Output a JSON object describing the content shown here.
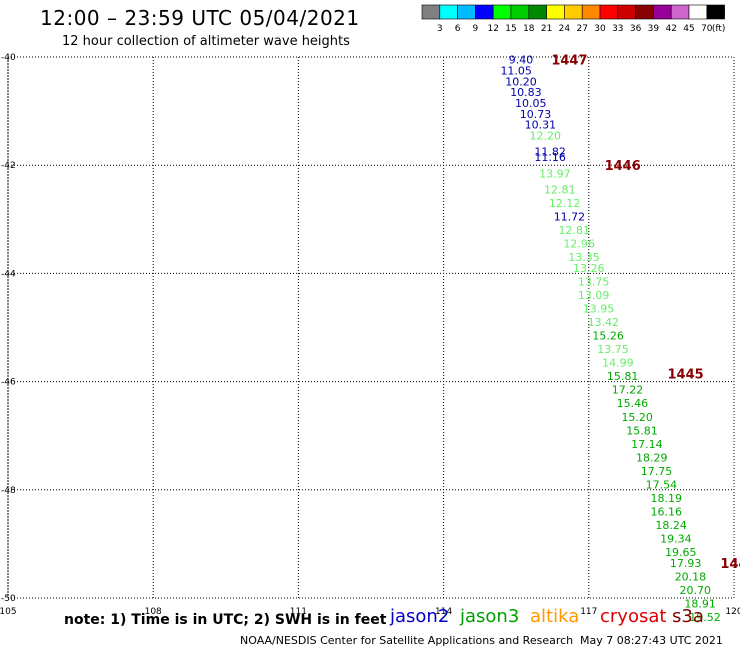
{
  "title": "12:00 – 23:59 UTC 05/04/2021",
  "subtitle": "12 hour collection of altimeter wave heights",
  "footer": {
    "note": "note:  1) Time is in UTC;  2) SWH is in feet",
    "credit": "NOAA/NESDIS Center for Satellite Applications and Research",
    "timestamp": "May  7 08:27:43 UTC 2021"
  },
  "satellites": [
    {
      "name": "jason2",
      "color": "#0000cc"
    },
    {
      "name": "jason3",
      "color": "#00a000"
    },
    {
      "name": "altika",
      "color": "#ff9900"
    },
    {
      "name": "cryosat",
      "color": "#dd0000"
    },
    {
      "name": "s3a",
      "color": "#880000"
    }
  ],
  "colorbar": {
    "colors": [
      "#808080",
      "#00ffff",
      "#00bbff",
      "#0000ff",
      "#00ff00",
      "#00cc00",
      "#008800",
      "#ffff00",
      "#ffcc00",
      "#ff8800",
      "#ff0000",
      "#cc0000",
      "#880000",
      "#990099",
      "#cc66cc",
      "#ffffff",
      "#000000"
    ],
    "labels": [
      "3",
      "6",
      "9",
      "12",
      "15",
      "18",
      "21",
      "24",
      "27",
      "30",
      "33",
      "36",
      "39",
      "42",
      "45",
      "70",
      "(ft)"
    ]
  },
  "chart_data": {
    "type": "scatter",
    "xlim": [
      105,
      120
    ],
    "ylim": [
      -50,
      -40
    ],
    "xticks": [
      "105",
      "108",
      "111",
      "114",
      "117",
      "120"
    ],
    "yticks": [
      "-40",
      "-42",
      "-44",
      "-46",
      "-48",
      "-50"
    ],
    "grid": true,
    "points": [
      {
        "lon": 115.6,
        "lat": -40.05,
        "v": "9.40",
        "c": "#0000aa"
      },
      {
        "lon": 115.5,
        "lat": -40.25,
        "v": "11.05",
        "c": "#0000aa"
      },
      {
        "lon": 115.6,
        "lat": -40.45,
        "v": "10.20",
        "c": "#0000aa"
      },
      {
        "lon": 115.7,
        "lat": -40.65,
        "v": "10.83",
        "c": "#0000aa"
      },
      {
        "lon": 115.8,
        "lat": -40.85,
        "v": "10.05",
        "c": "#0000aa"
      },
      {
        "lon": 115.9,
        "lat": -41.05,
        "v": "10.73",
        "c": "#0000aa"
      },
      {
        "lon": 116.0,
        "lat": -41.25,
        "v": "10.31",
        "c": "#0000aa"
      },
      {
        "lon": 116.1,
        "lat": -41.45,
        "v": "12.20",
        "c": "#66ee66"
      },
      {
        "lon": 116.2,
        "lat": -41.75,
        "v": "11.82",
        "c": "#0000aa"
      },
      {
        "lon": 116.2,
        "lat": -41.85,
        "v": "11.16",
        "c": "#0000aa"
      },
      {
        "lon": 116.3,
        "lat": -42.15,
        "v": "13.97",
        "c": "#66ee66"
      },
      {
        "lon": 116.4,
        "lat": -42.45,
        "v": "12.81",
        "c": "#66ee66"
      },
      {
        "lon": 116.5,
        "lat": -42.7,
        "v": "12.12",
        "c": "#66ee66"
      },
      {
        "lon": 116.6,
        "lat": -42.95,
        "v": "11.72",
        "c": "#0000aa"
      },
      {
        "lon": 116.7,
        "lat": -43.2,
        "v": "12.81",
        "c": "#66ee66"
      },
      {
        "lon": 116.8,
        "lat": -43.45,
        "v": "12.96",
        "c": "#66ee66"
      },
      {
        "lon": 116.9,
        "lat": -43.7,
        "v": "13.35",
        "c": "#66ee66"
      },
      {
        "lon": 117.0,
        "lat": -43.9,
        "v": "13.26",
        "c": "#66ee66"
      },
      {
        "lon": 117.1,
        "lat": -44.15,
        "v": "13.75",
        "c": "#66ee66"
      },
      {
        "lon": 117.1,
        "lat": -44.4,
        "v": "13.09",
        "c": "#66ee66"
      },
      {
        "lon": 117.2,
        "lat": -44.65,
        "v": "13.95",
        "c": "#66ee66"
      },
      {
        "lon": 117.3,
        "lat": -44.9,
        "v": "13.42",
        "c": "#66ee66"
      },
      {
        "lon": 117.4,
        "lat": -45.15,
        "v": "15.26",
        "c": "#00aa00"
      },
      {
        "lon": 117.5,
        "lat": -45.4,
        "v": "13.75",
        "c": "#66ee66"
      },
      {
        "lon": 117.6,
        "lat": -45.65,
        "v": "14.99",
        "c": "#66ee66"
      },
      {
        "lon": 117.7,
        "lat": -45.9,
        "v": "15.81",
        "c": "#00aa00"
      },
      {
        "lon": 117.8,
        "lat": -46.15,
        "v": "17.22",
        "c": "#00aa00"
      },
      {
        "lon": 117.9,
        "lat": -46.4,
        "v": "15.46",
        "c": "#00aa00"
      },
      {
        "lon": 118.0,
        "lat": -46.65,
        "v": "15.20",
        "c": "#00aa00"
      },
      {
        "lon": 118.1,
        "lat": -46.9,
        "v": "15.81",
        "c": "#00aa00"
      },
      {
        "lon": 118.2,
        "lat": -47.15,
        "v": "17.14",
        "c": "#00aa00"
      },
      {
        "lon": 118.3,
        "lat": -47.4,
        "v": "18.29",
        "c": "#00aa00"
      },
      {
        "lon": 118.4,
        "lat": -47.65,
        "v": "17.75",
        "c": "#00aa00"
      },
      {
        "lon": 118.5,
        "lat": -47.9,
        "v": "17.54",
        "c": "#00aa00"
      },
      {
        "lon": 118.6,
        "lat": -48.15,
        "v": "18.19",
        "c": "#00aa00"
      },
      {
        "lon": 118.6,
        "lat": -48.4,
        "v": "16.16",
        "c": "#00aa00"
      },
      {
        "lon": 118.7,
        "lat": -48.65,
        "v": "18.24",
        "c": "#00aa00"
      },
      {
        "lon": 118.8,
        "lat": -48.9,
        "v": "19.34",
        "c": "#00aa00"
      },
      {
        "lon": 118.9,
        "lat": -49.15,
        "v": "19.65",
        "c": "#00aa00"
      },
      {
        "lon": 119.0,
        "lat": -49.35,
        "v": "17.93",
        "c": "#00aa00"
      },
      {
        "lon": 119.1,
        "lat": -49.6,
        "v": "20.18",
        "c": "#00aa00"
      },
      {
        "lon": 119.2,
        "lat": -49.85,
        "v": "20.70",
        "c": "#00aa00"
      },
      {
        "lon": 119.3,
        "lat": -50.1,
        "v": "18.91",
        "c": "#00aa00"
      },
      {
        "lon": 119.4,
        "lat": -50.35,
        "v": "19.52",
        "c": "#00aa00"
      }
    ],
    "pass_labels": [
      {
        "lon": 116.6,
        "lat": -40.05,
        "text": "1447",
        "c": "#880000"
      },
      {
        "lon": 117.7,
        "lat": -42.0,
        "text": "1446",
        "c": "#880000"
      },
      {
        "lon": 119.0,
        "lat": -45.85,
        "text": "1445",
        "c": "#880000"
      },
      {
        "lon": 120.0,
        "lat": -49.35,
        "text": "144",
        "c": "#880000"
      }
    ]
  }
}
